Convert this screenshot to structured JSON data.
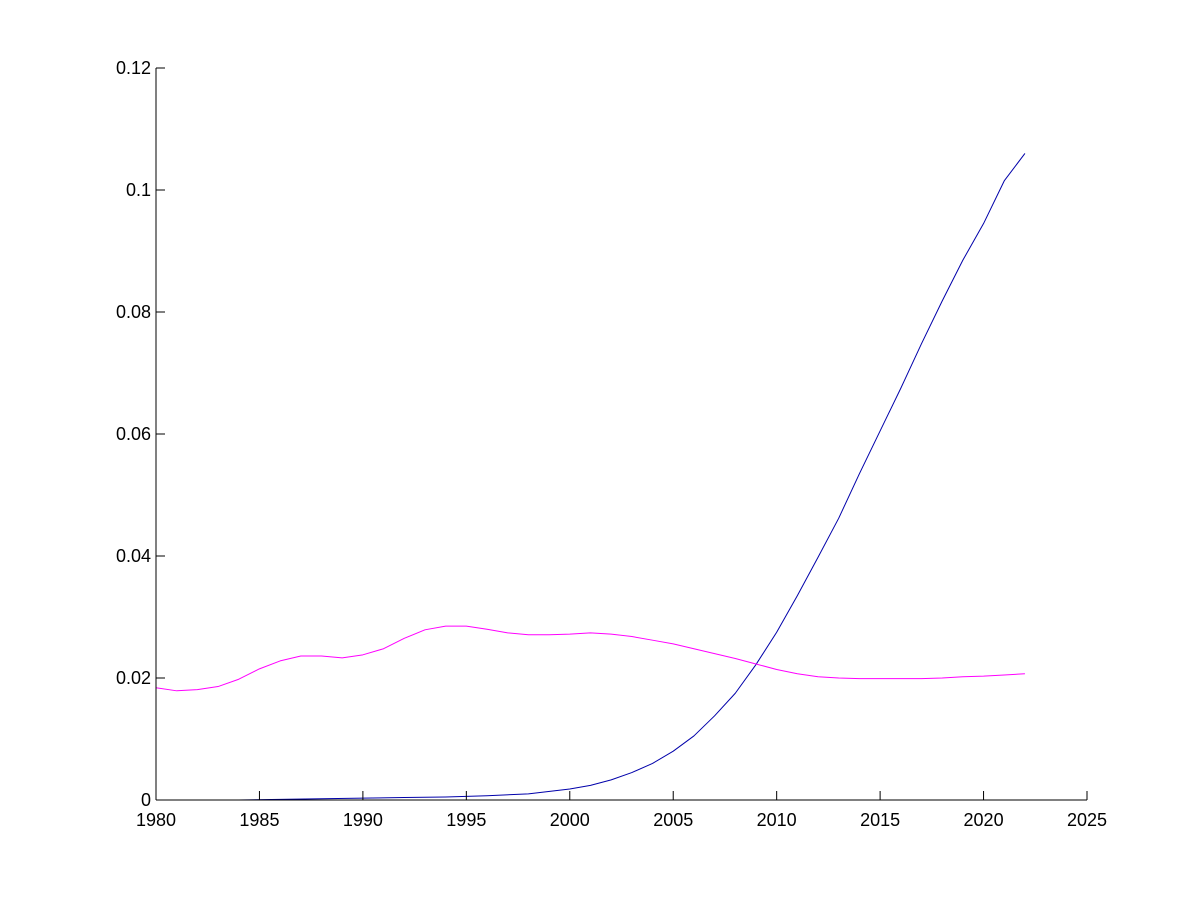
{
  "chart_data": {
    "type": "line",
    "title": "",
    "xlabel": "",
    "ylabel": "",
    "xlim": [
      1980,
      2025
    ],
    "ylim": [
      0,
      0.12
    ],
    "x_ticks": [
      "1980",
      "1985",
      "1990",
      "1995",
      "2000",
      "2005",
      "2010",
      "2015",
      "2020",
      "2025"
    ],
    "y_ticks": [
      "0",
      "0.02",
      "0.04",
      "0.06",
      "0.08",
      "0.1",
      "0.12"
    ],
    "x_tick_values": [
      1980,
      1985,
      1990,
      1995,
      2000,
      2005,
      2010,
      2015,
      2020,
      2025
    ],
    "y_tick_values": [
      0,
      0.02,
      0.04,
      0.06,
      0.08,
      0.1,
      0.12
    ],
    "grid": false,
    "legend": "none",
    "series": [
      {
        "color": "#0000aa",
        "x": [
          1980,
          1982,
          1984,
          1986,
          1988,
          1990,
          1992,
          1994,
          1996,
          1998,
          2000,
          2001,
          2002,
          2003,
          2004,
          2005,
          2006,
          2007,
          2008,
          2009,
          2010,
          2011,
          2012,
          2013,
          2014,
          2015,
          2016,
          2017,
          2018,
          2019,
          2020,
          2021,
          2022
        ],
        "y": [
          0.0,
          0.0,
          0.0,
          0.0001,
          0.0002,
          0.0003,
          0.0004,
          0.0005,
          0.0007,
          0.001,
          0.0018,
          0.0024,
          0.0033,
          0.0045,
          0.006,
          0.008,
          0.0105,
          0.0138,
          0.0175,
          0.0222,
          0.0275,
          0.0335,
          0.0398,
          0.0462,
          0.0535,
          0.0605,
          0.0675,
          0.0748,
          0.0818,
          0.0885,
          0.0945,
          0.1015,
          0.106
        ]
      },
      {
        "color": "#ff00ff",
        "x": [
          1980,
          1981,
          1982,
          1983,
          1984,
          1985,
          1986,
          1987,
          1988,
          1989,
          1990,
          1991,
          1992,
          1993,
          1994,
          1995,
          1996,
          1997,
          1998,
          1999,
          2000,
          2001,
          2002,
          2003,
          2004,
          2005,
          2006,
          2007,
          2008,
          2009,
          2010,
          2011,
          2012,
          2013,
          2014,
          2015,
          2016,
          2017,
          2018,
          2019,
          2020,
          2021,
          2022
        ],
        "y": [
          0.0184,
          0.0179,
          0.0181,
          0.0186,
          0.0198,
          0.0215,
          0.0228,
          0.0236,
          0.0236,
          0.0233,
          0.0238,
          0.0248,
          0.0265,
          0.0279,
          0.0285,
          0.0285,
          0.028,
          0.0274,
          0.0271,
          0.0271,
          0.0272,
          0.0274,
          0.0272,
          0.0268,
          0.0262,
          0.0256,
          0.0248,
          0.024,
          0.0232,
          0.0223,
          0.0214,
          0.0207,
          0.0202,
          0.02,
          0.0199,
          0.0199,
          0.0199,
          0.0199,
          0.02,
          0.0202,
          0.0203,
          0.0205,
          0.0207
        ]
      }
    ]
  }
}
